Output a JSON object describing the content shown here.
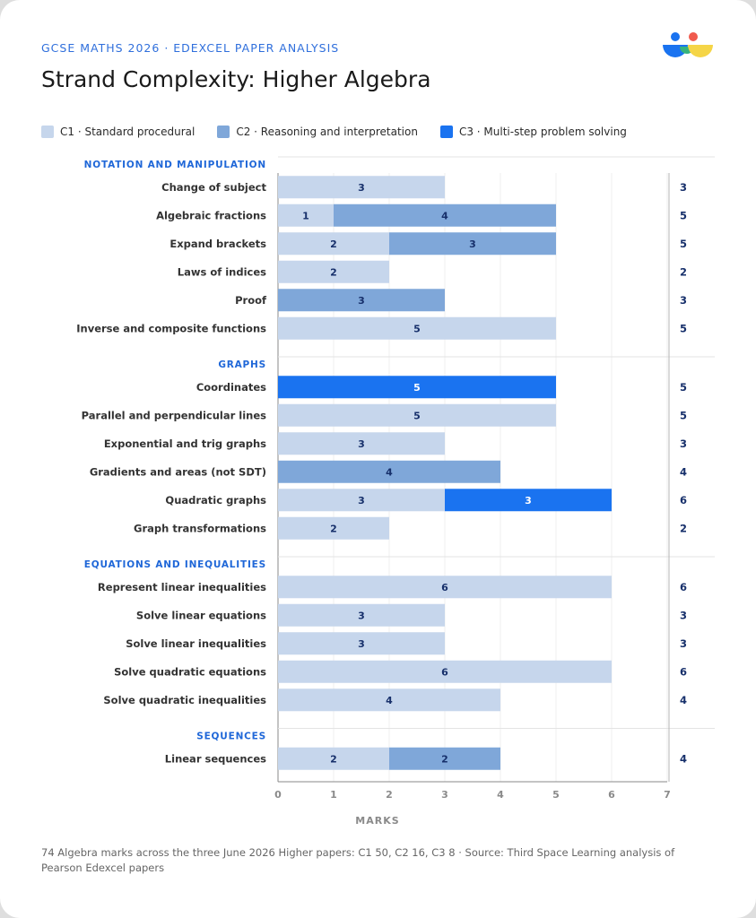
{
  "header": {
    "kicker": "GCSE MATHS 2026 · EDEXCEL PAPER ANALYSIS",
    "title": "Strand Complexity: Higher Algebra",
    "logo_icon": "people-logo-icon"
  },
  "legend": [
    {
      "label": "C1 · Standard procedural",
      "color": "#c6d6ec"
    },
    {
      "label": "C2 · Reasoning and interpretation",
      "color": "#7fa7d9"
    },
    {
      "label": "C3 · Multi-step problem solving",
      "color": "#1a73f0"
    }
  ],
  "chart_data": {
    "type": "bar",
    "orientation": "horizontal",
    "stacked": true,
    "xlabel": "MARKS",
    "xlim": [
      0,
      7
    ],
    "xticks": [
      0,
      1,
      2,
      3,
      4,
      5,
      6,
      7
    ],
    "series_names": [
      "C1 · Standard procedural",
      "C2 · Reasoning and interpretation",
      "C3 · Multi-step problem solving"
    ],
    "series_colors": [
      "#c6d6ec",
      "#7fa7d9",
      "#1a73f0"
    ],
    "grid": true,
    "legend_position": "top",
    "groups": [
      {
        "name": "NOTATION AND MANIPULATION",
        "rows": [
          {
            "label": "Change of subject",
            "values": [
              3,
              0,
              0
            ],
            "total": 3
          },
          {
            "label": "Algebraic fractions",
            "values": [
              1,
              4,
              0
            ],
            "total": 5
          },
          {
            "label": "Expand brackets",
            "values": [
              2,
              3,
              0
            ],
            "total": 5
          },
          {
            "label": "Laws of indices",
            "values": [
              2,
              0,
              0
            ],
            "total": 2
          },
          {
            "label": "Proof",
            "values": [
              0,
              3,
              0
            ],
            "total": 3
          },
          {
            "label": "Inverse and composite functions",
            "values": [
              5,
              0,
              0
            ],
            "total": 5
          }
        ]
      },
      {
        "name": "GRAPHS",
        "rows": [
          {
            "label": "Coordinates",
            "values": [
              0,
              0,
              5
            ],
            "total": 5
          },
          {
            "label": "Parallel and perpendicular lines",
            "values": [
              5,
              0,
              0
            ],
            "total": 5
          },
          {
            "label": "Exponential and trig graphs",
            "values": [
              3,
              0,
              0
            ],
            "total": 3
          },
          {
            "label": "Gradients and areas (not SDT)",
            "values": [
              0,
              4,
              0
            ],
            "total": 4
          },
          {
            "label": "Quadratic graphs",
            "values": [
              3,
              0,
              3
            ],
            "total": 6
          },
          {
            "label": "Graph transformations",
            "values": [
              2,
              0,
              0
            ],
            "total": 2
          }
        ]
      },
      {
        "name": "EQUATIONS AND INEQUALITIES",
        "rows": [
          {
            "label": "Represent linear inequalities",
            "values": [
              6,
              0,
              0
            ],
            "total": 6
          },
          {
            "label": "Solve linear equations",
            "values": [
              3,
              0,
              0
            ],
            "total": 3
          },
          {
            "label": "Solve linear inequalities",
            "values": [
              3,
              0,
              0
            ],
            "total": 3
          },
          {
            "label": "Solve quadratic equations",
            "values": [
              6,
              0,
              0
            ],
            "total": 6
          },
          {
            "label": "Solve quadratic inequalities",
            "values": [
              4,
              0,
              0
            ],
            "total": 4
          }
        ]
      },
      {
        "name": "SEQUENCES",
        "rows": [
          {
            "label": "Linear sequences",
            "values": [
              2,
              2,
              0
            ],
            "total": 4
          }
        ]
      }
    ]
  },
  "footnote": "74 Algebra marks across the three June 2026 Higher papers: C1 50, C2 16, C3 8 · Source: Third Space Learning analysis of Pearson Edexcel papers"
}
